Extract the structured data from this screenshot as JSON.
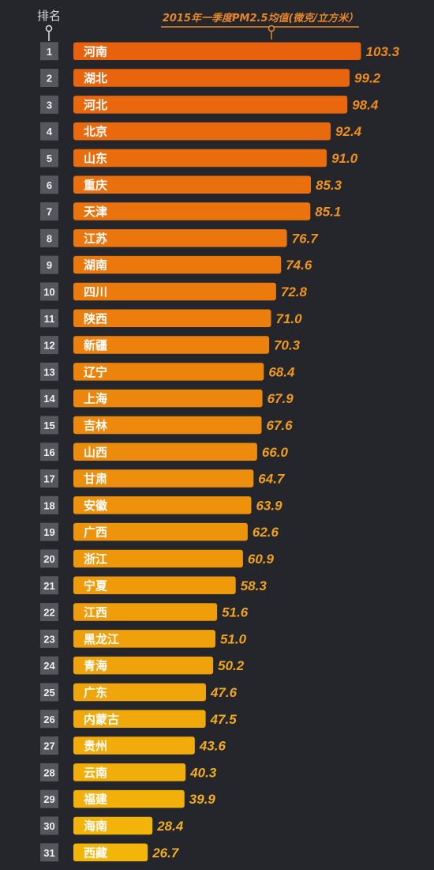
{
  "header": {
    "rank_label": "排名"
  },
  "colors": {
    "background": "#24262b",
    "top_bar": "#e8620e",
    "bottom_bar": "#f2b60a",
    "value_text": "#f0a020",
    "rank_box": "#55575c",
    "axis_line": "#e8862a"
  },
  "chart_data": {
    "type": "bar",
    "orientation": "horizontal",
    "title": "2015年一季度PM2.5均值(微克/立方米）",
    "ranks": [
      "1",
      "2",
      "3",
      "4",
      "5",
      "6",
      "7",
      "8",
      "9",
      "10",
      "11",
      "12",
      "13",
      "14",
      "15",
      "16",
      "17",
      "18",
      "19",
      "20",
      "21",
      "22",
      "23",
      "24",
      "25",
      "26",
      "27",
      "28",
      "29",
      "30",
      "31"
    ],
    "categories": [
      "河南",
      "湖北",
      "河北",
      "北京",
      "山东",
      "重庆",
      "天津",
      "江苏",
      "湖南",
      "四川",
      "陕西",
      "新疆",
      "辽宁",
      "上海",
      "吉林",
      "山西",
      "甘肃",
      "安徽",
      "广西",
      "浙江",
      "宁夏",
      "江西",
      "黑龙江",
      "青海",
      "广东",
      "内蒙古",
      "贵州",
      "云南",
      "福建",
      "海南",
      "西藏"
    ],
    "values": [
      103.3,
      99.2,
      98.4,
      92.4,
      91.0,
      85.3,
      85.1,
      76.7,
      74.6,
      72.8,
      71.0,
      70.3,
      68.4,
      67.9,
      67.6,
      66.0,
      64.7,
      63.9,
      62.6,
      60.9,
      58.3,
      51.6,
      51.0,
      50.2,
      47.6,
      47.5,
      43.6,
      40.3,
      39.9,
      28.4,
      26.7
    ],
    "value_labels": [
      "103.3",
      "99.2",
      "98.4",
      "92.4",
      "91.0",
      "85.3",
      "85.1",
      "76.7",
      "74.6",
      "72.8",
      "71.0",
      "70.3",
      "68.4",
      "67.9",
      "67.6",
      "66.0",
      "64.7",
      "63.9",
      "62.6",
      "60.9",
      "58.3",
      "51.6",
      "51.0",
      "50.2",
      "47.6",
      "47.5",
      "43.6",
      "40.3",
      "39.9",
      "28.4",
      "26.7"
    ],
    "xlim": [
      0,
      103.3
    ]
  }
}
